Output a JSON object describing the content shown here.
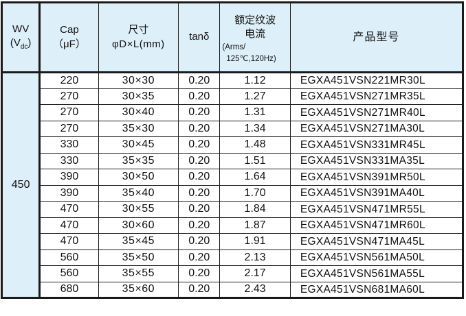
{
  "table": {
    "header": {
      "wv": {
        "line1": "WV",
        "unit_pre": "(V",
        "unit_sub": "dc",
        "unit_post": ")"
      },
      "cap": {
        "line1": "Cap",
        "line2": "（μF）"
      },
      "size": {
        "line1": "尺寸",
        "line2": "φD×L(mm)"
      },
      "tand": {
        "label": "tanδ"
      },
      "ripple": {
        "line1": "额定纹波",
        "line2": "电流",
        "line3": "(Arms/",
        "line4": "125℃,120Hz)"
      },
      "part": {
        "label": "产品型号"
      }
    },
    "wv_value": "450",
    "rows": [
      {
        "cap": "220",
        "size": "30×30",
        "tand": "0.20",
        "ripple": "1.12",
        "part": "EGXA451VSN221MR30L"
      },
      {
        "cap": "270",
        "size": "30×35",
        "tand": "0.20",
        "ripple": "1.27",
        "part": "EGXA451VSN271MR35L"
      },
      {
        "cap": "270",
        "size": "30×40",
        "tand": "0.20",
        "ripple": "1.31",
        "part": "EGXA451VSN271MR40L"
      },
      {
        "cap": "270",
        "size": "35×30",
        "tand": "0.20",
        "ripple": "1.34",
        "part": "EGXA451VSN271MA30L"
      },
      {
        "cap": "330",
        "size": "30×45",
        "tand": "0.20",
        "ripple": "1.48",
        "part": "EGXA451VSN331MR45L"
      },
      {
        "cap": "330",
        "size": "35×35",
        "tand": "0.20",
        "ripple": "1.51",
        "part": "EGXA451VSN331MA35L"
      },
      {
        "cap": "390",
        "size": "30×50",
        "tand": "0.20",
        "ripple": "1.64",
        "part": "EGXA451VSN391MR50L"
      },
      {
        "cap": "390",
        "size": "35×40",
        "tand": "0.20",
        "ripple": "1.70",
        "part": "EGXA451VSN391MA40L"
      },
      {
        "cap": "470",
        "size": "30×55",
        "tand": "0.20",
        "ripple": "1.84",
        "part": "EGXA451VSN471MR55L"
      },
      {
        "cap": "470",
        "size": "30×60",
        "tand": "0.20",
        "ripple": "1.87",
        "part": "EGXA451VSN471MR60L"
      },
      {
        "cap": "470",
        "size": "35×45",
        "tand": "0.20",
        "ripple": "1.91",
        "part": "EGXA451VSN471MA45L"
      },
      {
        "cap": "560",
        "size": "35×50",
        "tand": "0.20",
        "ripple": "2.13",
        "part": "EGXA451VSN561MA50L"
      },
      {
        "cap": "560",
        "size": "35×55",
        "tand": "0.20",
        "ripple": "2.17",
        "part": "EGXA451VSN561MA55L"
      },
      {
        "cap": "680",
        "size": "35×60",
        "tand": "0.20",
        "ripple": "2.43",
        "part": "EGXA451VSN681MA60L"
      }
    ]
  },
  "colors": {
    "header_bg": "#ddeff8",
    "border": "#1a1a1a",
    "row_bg": "#ffffff",
    "text": "#111111"
  }
}
